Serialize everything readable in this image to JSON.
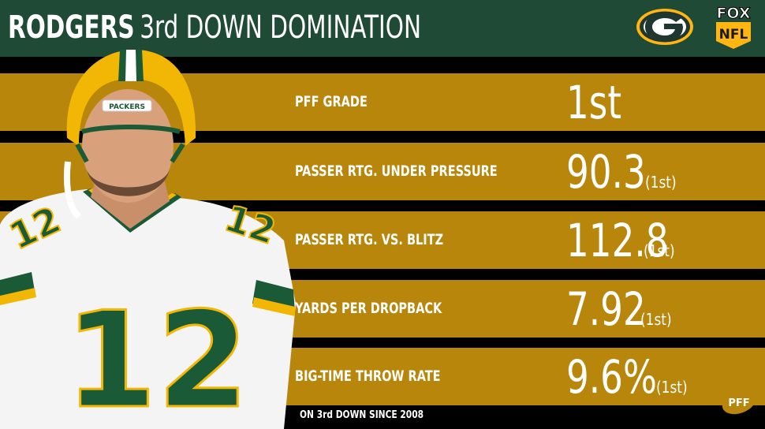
{
  "header": {
    "name_bold": "RODGERS",
    "name_light": "3rd DOWN DOMINATION"
  },
  "logos": {
    "team_logo": "green-bay-packers-g-logo",
    "network_logo": "fox-nfl-logo",
    "fox_text": "FOX",
    "nfl_text": "NFL",
    "pff_text": "PFF"
  },
  "colors": {
    "header_bg": "#1f4a35",
    "row_bg": "#b8860b",
    "text": "#ffffff",
    "jersey_green": "#1a5a36",
    "helmet_gold": "#f2b705"
  },
  "player": {
    "jersey_number": "12",
    "helmet_text": "PACKERS"
  },
  "stats": [
    {
      "label": "PFF GRADE",
      "value": "1st",
      "rank": ""
    },
    {
      "label": "PASSER RTG. UNDER PRESSURE",
      "value": "90.3",
      "rank": "(1st)"
    },
    {
      "label": "PASSER RTG. VS. BLITZ",
      "value": "112.8",
      "rank": "(1st)"
    },
    {
      "label": "YARDS PER DROPBACK",
      "value": "7.92",
      "rank": "(1st)"
    },
    {
      "label": "BIG-TIME THROW RATE",
      "value": "9.6%",
      "rank": "(1st)"
    }
  ],
  "footnote": "ON 3rd DOWN SINCE 2008"
}
